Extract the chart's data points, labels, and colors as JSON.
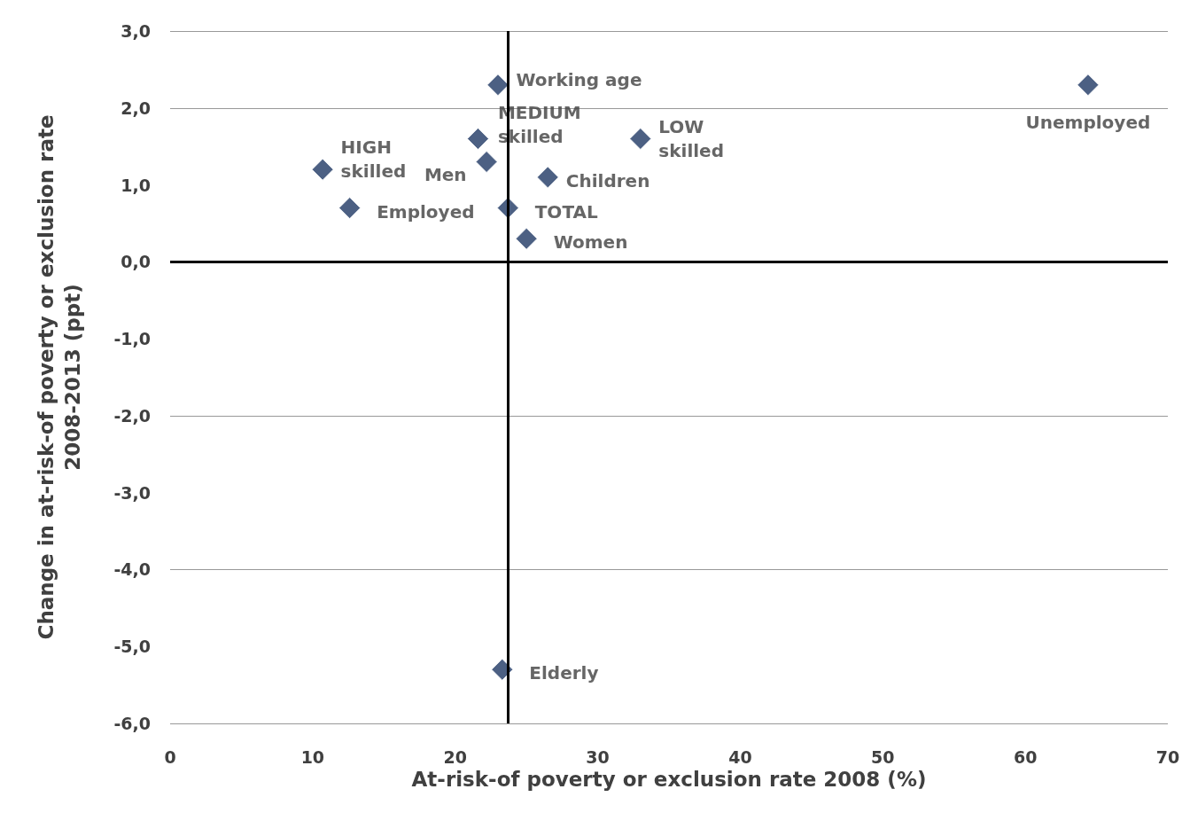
{
  "chart_data": {
    "type": "scatter",
    "xlabel": "At-risk-of poverty or exclusion rate 2008 (%)",
    "ylabel": "Change in at-risk-of poverty or exclusion rate\n2008-2013 (ppt)",
    "x": [
      23.0,
      64.4,
      10.7,
      21.6,
      22.2,
      33.0,
      26.5,
      12.6,
      23.7,
      25.0,
      23.3
    ],
    "series": [
      {
        "color": "#1f3864",
        "values": [
          2.3,
          2.3,
          1.2,
          1.6,
          1.3,
          1.6,
          1.1,
          0.7,
          0.7,
          0.3,
          -5.3
        ],
        "value_labels": [
          "Working age",
          "Unemployed",
          "HIGH skilled",
          "MEDIUM skilled",
          "Men",
          "LOW skilled",
          "Children",
          "Employed",
          "TOTAL",
          "Women",
          "Elderly"
        ]
      }
    ],
    "xlim": [
      0,
      70
    ],
    "xticks": [
      0,
      10,
      20,
      30,
      40,
      50,
      60,
      70
    ],
    "ylim": [
      -6,
      3
    ],
    "yticks": [
      {
        "value": -6,
        "label": "-6,0"
      },
      {
        "value": -5,
        "label": "-5,0"
      },
      {
        "value": -4,
        "label": "-4,0"
      },
      {
        "value": -3,
        "label": "-3,0"
      },
      {
        "value": -2,
        "label": "-2,0"
      },
      {
        "value": -1,
        "label": "-1,0"
      },
      {
        "value": 0,
        "label": "0,0"
      },
      {
        "value": 1,
        "label": "1,0"
      },
      {
        "value": 2,
        "label": "2,0"
      },
      {
        "value": 3,
        "label": "3,0"
      }
    ],
    "ref_lines": [
      {
        "axis": "y",
        "value": 0,
        "color": "#000000"
      },
      {
        "axis": "x",
        "value": 23.7,
        "color": "#000000"
      }
    ],
    "grid": "y",
    "marker": "diamond"
  }
}
